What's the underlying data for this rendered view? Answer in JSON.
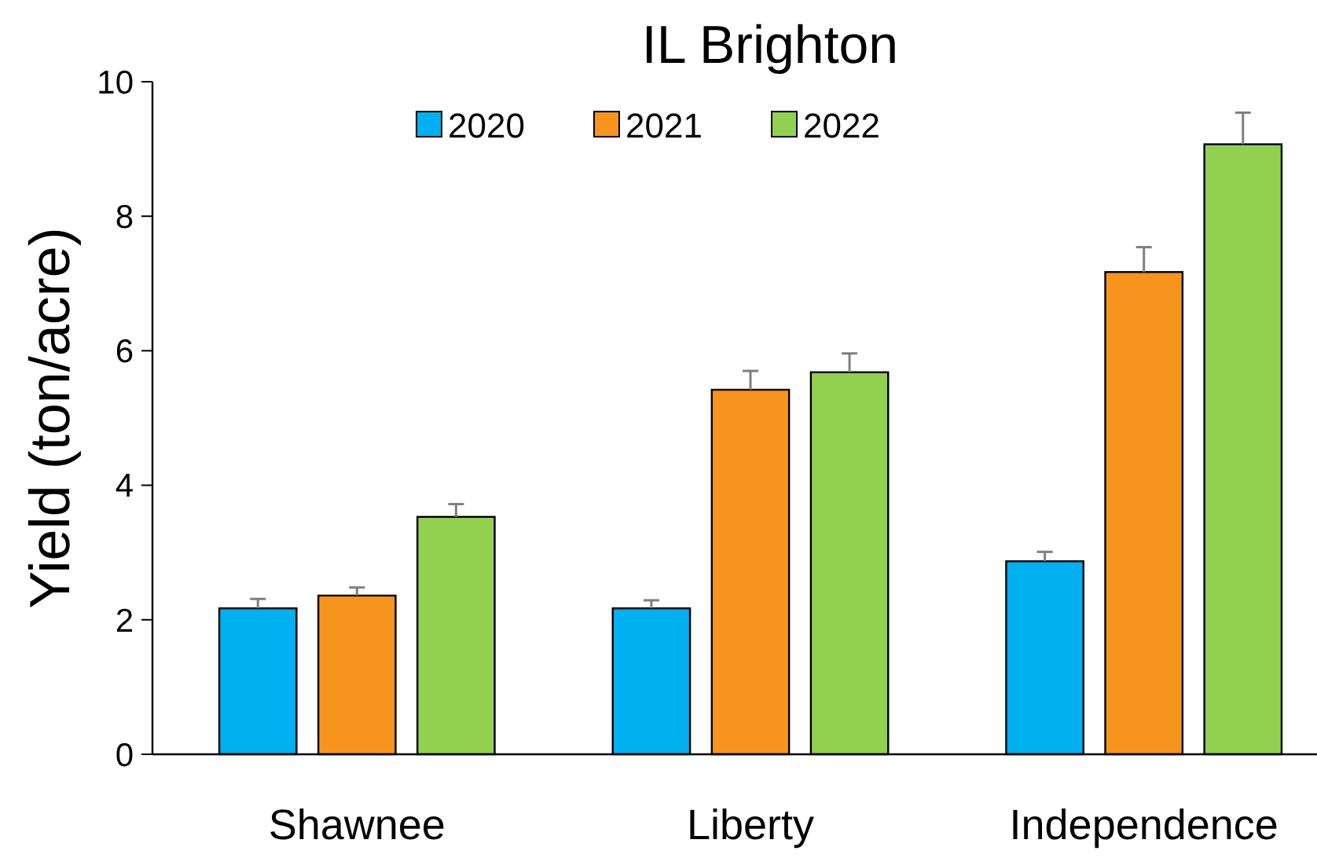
{
  "chart_data": {
    "type": "bar",
    "title": "IL Brighton",
    "ylabel": "Yield (ton/acre)",
    "categories": [
      "Shawnee",
      "Liberty",
      "Independence"
    ],
    "series": [
      {
        "name": "2020",
        "color": "#00b0f0",
        "values": [
          2.17,
          2.17,
          2.87
        ],
        "errors": [
          [
            2.17,
            2.31
          ],
          [
            2.17,
            2.29
          ],
          [
            2.87,
            3.01
          ]
        ]
      },
      {
        "name": "2021",
        "color": "#f7941d",
        "values": [
          2.36,
          5.42,
          7.17
        ],
        "errors": [
          [
            2.36,
            2.48
          ],
          [
            5.42,
            5.7
          ],
          [
            7.17,
            7.54
          ]
        ]
      },
      {
        "name": "2022",
        "color": "#92d050",
        "values": [
          3.53,
          5.68,
          9.07
        ],
        "errors": [
          [
            3.53,
            3.72
          ],
          [
            5.68,
            5.96
          ],
          [
            9.07,
            9.54
          ]
        ]
      }
    ],
    "ylim": [
      0,
      10
    ],
    "yticks": [
      0,
      2,
      4,
      6,
      8,
      10
    ],
    "grid": false,
    "legend": "top"
  }
}
